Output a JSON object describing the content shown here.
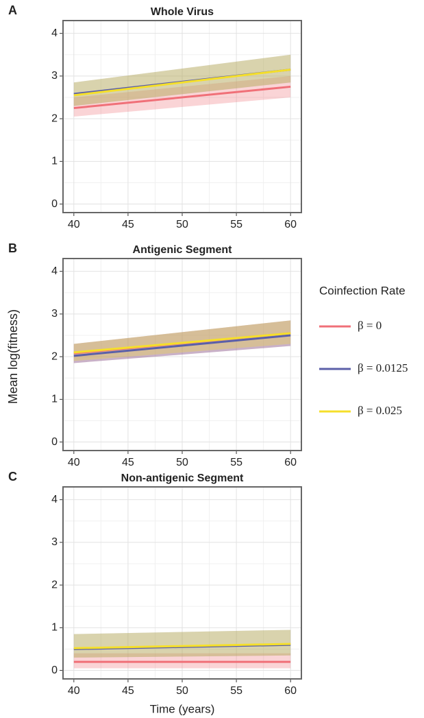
{
  "shared": {
    "ylabel": "Mean log(fitness)",
    "xlabel": "Time (years)",
    "legend_title": "Coinfection Rate"
  },
  "chart_data": [
    {
      "type": "line",
      "panel": "A",
      "title": "Whole Virus",
      "x": [
        40,
        60
      ],
      "xlim": [
        39,
        61
      ],
      "xticks": [
        40,
        45,
        50,
        55,
        60
      ],
      "ylim": [
        -0.2,
        4.3
      ],
      "yticks": [
        0,
        1,
        2,
        3,
        4
      ],
      "grid": true,
      "series": [
        {
          "name": "β = 0",
          "color": "#f07078",
          "values": [
            2.25,
            2.75
          ],
          "lower": [
            2.05,
            2.5
          ],
          "upper": [
            2.5,
            3.0
          ]
        },
        {
          "name": "β = 0.0125",
          "color": "#5b5fa8",
          "values": [
            2.58,
            3.15
          ],
          "lower": [
            2.3,
            2.85
          ],
          "upper": [
            2.85,
            3.5
          ]
        },
        {
          "name": "β = 0.025",
          "color": "#f5df2a",
          "values": [
            2.55,
            3.15
          ],
          "lower": [
            2.3,
            2.85
          ],
          "upper": [
            2.85,
            3.5
          ]
        }
      ]
    },
    {
      "type": "line",
      "panel": "B",
      "title": "Antigenic Segment",
      "x": [
        40,
        60
      ],
      "xlim": [
        39,
        61
      ],
      "xticks": [
        40,
        45,
        50,
        55,
        60
      ],
      "ylim": [
        -0.2,
        4.3
      ],
      "yticks": [
        0,
        1,
        2,
        3,
        4
      ],
      "grid": true,
      "series": [
        {
          "name": "β = 0",
          "color": "#f07078",
          "values": [
            2.08,
            2.55
          ],
          "lower": [
            1.85,
            2.25
          ],
          "upper": [
            2.3,
            2.85
          ]
        },
        {
          "name": "β = 0.0125",
          "color": "#5b5fa8",
          "values": [
            2.02,
            2.5
          ],
          "lower": [
            1.85,
            2.25
          ],
          "upper": [
            2.3,
            2.85
          ]
        },
        {
          "name": "β = 0.025",
          "color": "#f5df2a",
          "values": [
            2.1,
            2.55
          ],
          "lower": [
            1.9,
            2.3
          ],
          "upper": [
            2.3,
            2.85
          ]
        }
      ]
    },
    {
      "type": "line",
      "panel": "C",
      "title": "Non-antigenic Segment",
      "x": [
        40,
        60
      ],
      "xlim": [
        39,
        61
      ],
      "xticks": [
        40,
        45,
        50,
        55,
        60
      ],
      "ylim": [
        -0.2,
        4.3
      ],
      "yticks": [
        0,
        1,
        2,
        3,
        4
      ],
      "grid": true,
      "series": [
        {
          "name": "β = 0",
          "color": "#f07078",
          "values": [
            0.2,
            0.2
          ],
          "lower": [
            0.05,
            0.05
          ],
          "upper": [
            0.4,
            0.4
          ]
        },
        {
          "name": "β = 0.0125",
          "color": "#5b5fa8",
          "values": [
            0.5,
            0.6
          ],
          "lower": [
            0.3,
            0.35
          ],
          "upper": [
            0.85,
            0.95
          ]
        },
        {
          "name": "β = 0.025",
          "color": "#f5df2a",
          "values": [
            0.52,
            0.62
          ],
          "lower": [
            0.3,
            0.35
          ],
          "upper": [
            0.85,
            0.95
          ]
        }
      ]
    }
  ]
}
